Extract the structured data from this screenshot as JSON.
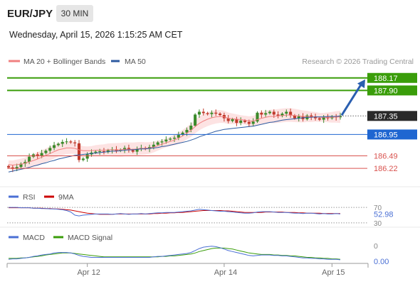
{
  "header": {
    "symbol": "EUR/JPY",
    "timeframe": "30 MIN",
    "datetime": "Wednesday, April 15, 2026 1:15:25 AM CET"
  },
  "legend": {
    "items": [
      {
        "label": "MA 20 + Bollinger Bands",
        "color": "#f08080"
      },
      {
        "label": "MA 50",
        "color": "#2c5aa0"
      }
    ],
    "copyright": "Research © 2026 Trading Central"
  },
  "colors": {
    "up_candle": "#3a8a2a",
    "down_candle": "#c0392b",
    "band_fill": "#fde0e0",
    "ma20": "#f08080",
    "ma50": "#2c5aa0",
    "target_green": "#3a9d0a",
    "pivot_blue": "#1f66d1",
    "support_red": "#d9534f",
    "current_dark": "#2a2a2a",
    "arrow": "#2a5fb0",
    "rsi": "#4a6fd4",
    "rsi_ma": "#cc0000",
    "macd": "#4a6fd4",
    "macd_signal": "#3a9d0a"
  },
  "chart_data": [
    {
      "type": "candlestick",
      "panel": "price",
      "x_ticks": [
        "Apr 12",
        "Apr 14",
        "Apr 15"
      ],
      "ylim": [
        185.9,
        188.35
      ],
      "levels": [
        {
          "value": 188.17,
          "label": "188.17",
          "kind": "target"
        },
        {
          "value": 187.9,
          "label": "187.90",
          "kind": "target"
        },
        {
          "value": 187.35,
          "label": "187.35",
          "kind": "current"
        },
        {
          "value": 186.95,
          "label": "186.95",
          "kind": "pivot"
        },
        {
          "value": 186.49,
          "label": "186.49",
          "kind": "support"
        },
        {
          "value": 186.22,
          "label": "186.22",
          "kind": "support"
        }
      ],
      "arrow": {
        "from": 187.35,
        "to": 188.17
      },
      "close": [
        186.24,
        186.21,
        186.25,
        186.32,
        186.36,
        186.47,
        186.52,
        186.49,
        186.55,
        186.6,
        186.66,
        186.72,
        186.75,
        186.79,
        186.8,
        186.78,
        186.76,
        186.4,
        186.43,
        186.52,
        186.56,
        186.58,
        186.59,
        186.57,
        186.61,
        186.63,
        186.6,
        186.62,
        186.66,
        186.61,
        186.58,
        186.64,
        186.66,
        186.64,
        186.68,
        186.73,
        186.78,
        186.8,
        186.84,
        186.86,
        186.88,
        186.94,
        186.99,
        187.05,
        187.14,
        187.38,
        187.44,
        187.41,
        187.39,
        187.42,
        187.4,
        187.37,
        187.3,
        187.24,
        187.28,
        187.2,
        187.25,
        187.22,
        187.18,
        187.23,
        187.42,
        187.38,
        187.41,
        187.44,
        187.38,
        187.35,
        187.4,
        187.44,
        187.36,
        187.3,
        187.34,
        187.28,
        187.36,
        187.33,
        187.3,
        187.27,
        187.32,
        187.3,
        187.34,
        187.32,
        187.35
      ],
      "ma20": [
        186.3,
        186.29,
        186.3,
        186.31,
        186.33,
        186.36,
        186.39,
        186.42,
        186.46,
        186.5,
        186.54,
        186.58,
        186.62,
        186.64,
        186.66,
        186.66,
        186.65,
        186.62,
        186.6,
        186.6,
        186.6,
        186.61,
        186.61,
        186.61,
        186.62,
        186.62,
        186.62,
        186.62,
        186.63,
        186.63,
        186.63,
        186.64,
        186.65,
        186.65,
        186.66,
        186.68,
        186.71,
        186.74,
        186.77,
        186.8,
        186.83,
        186.87,
        186.92,
        186.98,
        187.04,
        187.12,
        187.19,
        187.24,
        187.28,
        187.31,
        187.33,
        187.34,
        187.33,
        187.3,
        187.29,
        187.28,
        187.27,
        187.26,
        187.24,
        187.24,
        187.27,
        187.3,
        187.32,
        187.34,
        187.34,
        187.35,
        187.36,
        187.37,
        187.37,
        187.36,
        187.35,
        187.34,
        187.34,
        187.33,
        187.33,
        187.32,
        187.32,
        187.32,
        187.32,
        187.33,
        187.33
      ],
      "ma50": [
        186.14,
        186.16,
        186.18,
        186.2,
        186.22,
        186.24,
        186.27,
        186.29,
        186.32,
        186.34,
        186.37,
        186.39,
        186.42,
        186.44,
        186.46,
        186.48,
        186.5,
        186.51,
        186.52,
        186.53,
        186.54,
        186.55,
        186.56,
        186.57,
        186.58,
        186.59,
        186.59,
        186.6,
        186.61,
        186.62,
        186.62,
        186.63,
        186.64,
        186.64,
        186.65,
        186.66,
        186.67,
        186.69,
        186.7,
        186.72,
        186.74,
        186.76,
        186.78,
        186.8,
        186.83,
        186.86,
        186.9,
        186.93,
        186.96,
        186.99,
        187.02,
        187.04,
        187.06,
        187.07,
        187.08,
        187.09,
        187.1,
        187.11,
        187.12,
        187.13,
        187.15,
        187.17,
        187.19,
        187.21,
        187.22,
        187.24,
        187.26,
        187.27,
        187.28,
        187.29,
        187.3,
        187.31,
        187.32,
        187.32,
        187.33,
        187.33,
        187.33,
        187.34,
        187.34,
        187.34,
        187.35
      ]
    },
    {
      "type": "line",
      "panel": "rsi",
      "series": [
        {
          "name": "RSI",
          "values": [
            70,
            70,
            70,
            69,
            69,
            69,
            68,
            68,
            67,
            67,
            66,
            66,
            65,
            64,
            62,
            58,
            50,
            48,
            50,
            51,
            52,
            53,
            53,
            53,
            53,
            52,
            53,
            54,
            53,
            52,
            53,
            53,
            54,
            53,
            54,
            55,
            56,
            56,
            57,
            57,
            57,
            58,
            59,
            60,
            61,
            63,
            65,
            64,
            63,
            62,
            61,
            60,
            60,
            59,
            58,
            57,
            56,
            55,
            55,
            56,
            58,
            59,
            59,
            59,
            58,
            57,
            57,
            57,
            56,
            55,
            55,
            54,
            55,
            55,
            54,
            53,
            54,
            53,
            53,
            54,
            53
          ]
        },
        {
          "name": "9MA",
          "values": [
            69,
            69,
            69,
            69,
            69,
            69,
            68,
            68,
            68,
            67,
            67,
            66,
            66,
            65,
            64,
            63,
            61,
            59,
            57,
            55,
            54,
            53,
            52,
            52,
            52,
            52,
            53,
            53,
            53,
            53,
            53,
            53,
            53,
            53,
            53,
            54,
            54,
            55,
            55,
            56,
            56,
            57,
            57,
            58,
            59,
            60,
            61,
            62,
            62,
            62,
            62,
            62,
            61,
            61,
            60,
            59,
            58,
            57,
            57,
            57,
            57,
            57,
            58,
            58,
            58,
            58,
            58,
            57,
            57,
            57,
            56,
            56,
            55,
            55,
            55,
            55,
            54,
            54,
            54,
            54,
            54
          ]
        }
      ],
      "reference_levels": [
        70,
        30
      ],
      "last_value_label": "52.98"
    },
    {
      "type": "line",
      "panel": "macd",
      "series": [
        {
          "name": "MACD",
          "values": [
            0.02,
            0.03,
            0.03,
            0.04,
            0.05,
            0.06,
            0.08,
            0.09,
            0.11,
            0.12,
            0.13,
            0.15,
            0.16,
            0.16,
            0.16,
            0.15,
            0.13,
            0.1,
            0.08,
            0.07,
            0.06,
            0.06,
            0.06,
            0.06,
            0.06,
            0.06,
            0.06,
            0.06,
            0.06,
            0.06,
            0.06,
            0.06,
            0.06,
            0.06,
            0.06,
            0.07,
            0.08,
            0.08,
            0.09,
            0.1,
            0.11,
            0.12,
            0.13,
            0.14,
            0.16,
            0.2,
            0.24,
            0.27,
            0.28,
            0.29,
            0.28,
            0.26,
            0.23,
            0.2,
            0.18,
            0.16,
            0.14,
            0.12,
            0.1,
            0.09,
            0.1,
            0.11,
            0.11,
            0.11,
            0.1,
            0.1,
            0.09,
            0.09,
            0.08,
            0.07,
            0.06,
            0.05,
            0.05,
            0.04,
            0.04,
            0.03,
            0.03,
            0.02,
            0.02,
            0.02,
            0.01
          ]
        },
        {
          "name": "MACD Signal",
          "values": [
            0.04,
            0.04,
            0.04,
            0.05,
            0.05,
            0.06,
            0.07,
            0.08,
            0.09,
            0.11,
            0.12,
            0.13,
            0.14,
            0.15,
            0.15,
            0.15,
            0.14,
            0.13,
            0.12,
            0.11,
            0.1,
            0.09,
            0.08,
            0.07,
            0.07,
            0.07,
            0.07,
            0.07,
            0.07,
            0.07,
            0.07,
            0.07,
            0.07,
            0.07,
            0.07,
            0.07,
            0.07,
            0.08,
            0.08,
            0.09,
            0.09,
            0.1,
            0.11,
            0.12,
            0.13,
            0.15,
            0.18,
            0.2,
            0.22,
            0.24,
            0.25,
            0.25,
            0.25,
            0.24,
            0.23,
            0.21,
            0.19,
            0.17,
            0.15,
            0.14,
            0.13,
            0.12,
            0.12,
            0.12,
            0.11,
            0.11,
            0.1,
            0.1,
            0.09,
            0.09,
            0.08,
            0.07,
            0.06,
            0.06,
            0.05,
            0.05,
            0.04,
            0.04,
            0.03,
            0.03,
            0.02
          ]
        }
      ],
      "reference_levels": [
        0
      ],
      "last_value_label": "0.00"
    }
  ]
}
